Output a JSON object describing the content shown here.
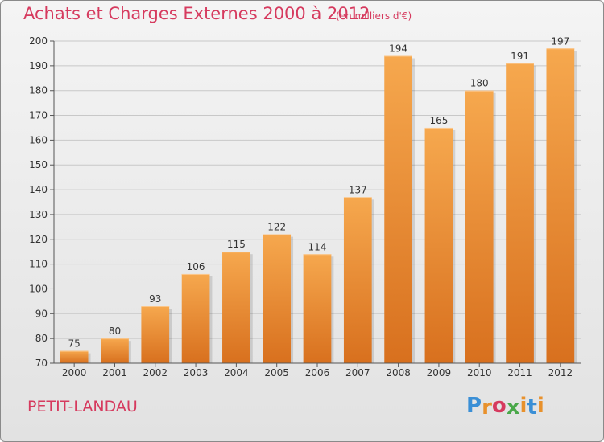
{
  "header": {
    "title": "Achats et Charges Externes 2000 à 2012",
    "unit": "(en milliers d'€)"
  },
  "footer": {
    "commune": "PETIT-LANDAU",
    "logo_letters": [
      "P",
      "r",
      "o",
      "x",
      "i",
      "t",
      "i"
    ],
    "logo_colors": [
      "#3a8fd6",
      "#e8912c",
      "#d63a5e",
      "#4aa84a",
      "#e8912c",
      "#3a8fd6",
      "#e8912c"
    ]
  },
  "colors": {
    "bar_light": "#f6a84e",
    "bar_dark": "#d8701e",
    "grid": "#c8c8c8",
    "accent": "#d63a5e"
  },
  "chart_data": {
    "type": "bar",
    "categories": [
      "2000",
      "2001",
      "2002",
      "2003",
      "2004",
      "2005",
      "2006",
      "2007",
      "2008",
      "2009",
      "2010",
      "2011",
      "2012"
    ],
    "values": [
      75,
      80,
      93,
      106,
      115,
      122,
      114,
      137,
      194,
      165,
      180,
      191,
      197
    ],
    "data_labels": [
      "75",
      "80",
      "93",
      "106",
      "115",
      "122",
      "114",
      "137",
      "194",
      "165",
      "180",
      "191",
      "197"
    ],
    "ylim": [
      70,
      200
    ],
    "yticks": [
      70,
      80,
      90,
      100,
      110,
      120,
      130,
      140,
      150,
      160,
      170,
      180,
      190,
      200
    ],
    "grid": true,
    "xlabel": "",
    "ylabel": ""
  }
}
